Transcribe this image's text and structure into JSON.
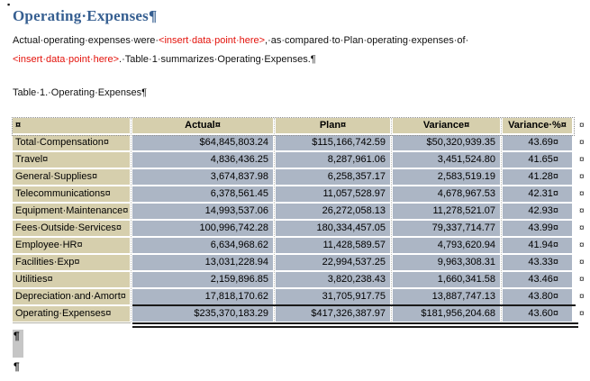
{
  "page": {
    "anchor_bullet": "▪"
  },
  "heading": {
    "text": "Operating·Expenses¶"
  },
  "body": {
    "line1_pre": "Actual·operating·expenses·were·",
    "line1_placeholder": "<insert·data·point·here>",
    "line1_post": ",·as·compared·to·Plan·operating·expenses·of·",
    "line2_placeholder": "<insert·data·point·here>",
    "line2_post": ".·Table·1·summarizes·Operating·Expenses.¶"
  },
  "caption": {
    "text": "Table·1.·Operating·Expenses¶"
  },
  "table": {
    "columns": [
      "¤",
      "Actual¤",
      "Plan¤",
      "Variance¤",
      "Variance·%¤"
    ],
    "row_end_marker": "¤",
    "rows": [
      {
        "label": "Total·Compensation¤",
        "actual": "$64,845,803.24",
        "plan": "$115,166,742.59",
        "variance": "$50,320,939.35",
        "variance_pct": "43.69¤"
      },
      {
        "label": "Travel¤",
        "actual": "4,836,436.25",
        "plan": "8,287,961.06",
        "variance": "3,451,524.80",
        "variance_pct": "41.65¤"
      },
      {
        "label": "General·Supplies¤",
        "actual": "3,674,837.98",
        "plan": "6,258,357.17",
        "variance": "2,583,519.19",
        "variance_pct": "41.28¤"
      },
      {
        "label": "Telecommunications¤",
        "actual": "6,378,561.45",
        "plan": "11,057,528.97",
        "variance": "4,678,967.53",
        "variance_pct": "42.31¤"
      },
      {
        "label": "Equipment·Maintenance¤",
        "actual": "14,993,537.06",
        "plan": "26,272,058.13",
        "variance": "11,278,521.07",
        "variance_pct": "42.93¤"
      },
      {
        "label": "Fees·Outside·Services¤",
        "actual": "100,996,742.28",
        "plan": "180,334,457.05",
        "variance": "79,337,714.77",
        "variance_pct": "43.99¤"
      },
      {
        "label": "Employee·HR¤",
        "actual": "6,634,968.62",
        "plan": "11,428,589.57",
        "variance": "4,793,620.94",
        "variance_pct": "41.94¤"
      },
      {
        "label": "Facilities·Exp¤",
        "actual": "13,031,228.94",
        "plan": "22,994,537.25",
        "variance": "9,963,308.31",
        "variance_pct": "43.33¤"
      },
      {
        "label": "Utilities¤",
        "actual": "2,159,896.85",
        "plan": "3,820,238.43",
        "variance": "1,660,341.58",
        "variance_pct": "43.46¤"
      },
      {
        "label": "Depreciation·and·Amort¤",
        "actual": "17,818,170.62",
        "plan": "31,705,917.75",
        "variance": "13,887,747.13",
        "variance_pct": "43.80¤"
      },
      {
        "label": "Operating·Expenses¤",
        "actual": "$235,370,183.29",
        "plan": "$417,326,387.97",
        "variance": "$181,956,204.68",
        "variance_pct": "43.60¤"
      }
    ]
  },
  "after_table": {
    "pilcrow_selected": "¶",
    "pilcrow_empty": "¶"
  },
  "colors": {
    "heading_blue": "#365f91",
    "placeholder_red": "#e3120b",
    "header_label_fill": "#d6cfad",
    "data_fill": "#acb6c5",
    "selection_gray": "#c6c6c6"
  }
}
